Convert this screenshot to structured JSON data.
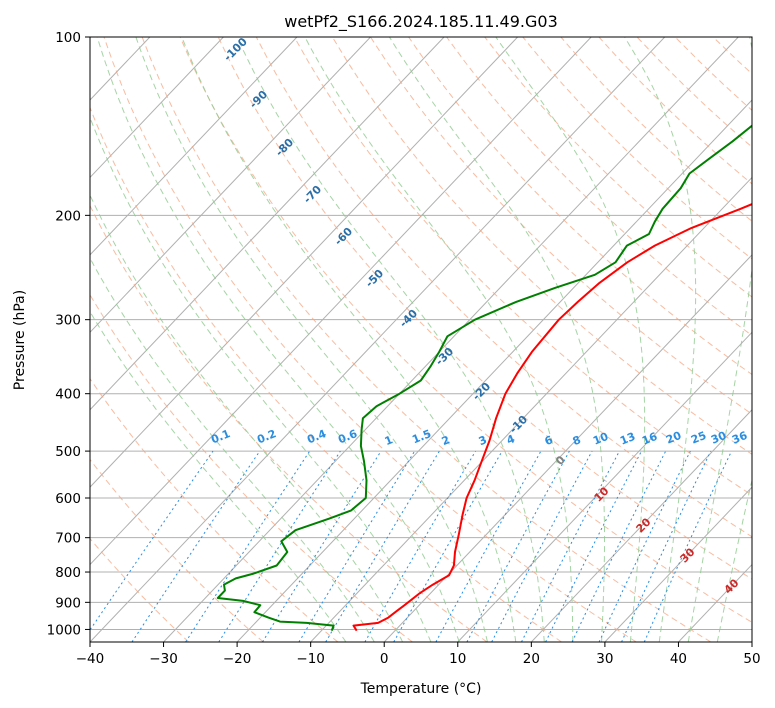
{
  "chart_data": {
    "type": "line",
    "title": "wetPf2_S166.2024.185.11.49.G03",
    "xlabel": "Temperature (°C)",
    "ylabel": "Pressure (hPa)",
    "xlim": [
      -40,
      50
    ],
    "ylim": [
      1050,
      100
    ],
    "y_scale": "log",
    "grid": true,
    "x_ticks": [
      -40,
      -30,
      -20,
      -10,
      0,
      10,
      20,
      30,
      40,
      50
    ],
    "x_tick_labels": [
      "−40",
      "−30",
      "−20",
      "−10",
      "0",
      "10",
      "20",
      "30",
      "40",
      "50"
    ],
    "y_ticks": [
      1000,
      900,
      800,
      700,
      600,
      500,
      400,
      300,
      200,
      100
    ],
    "y_tick_labels": [
      "1000",
      "900",
      "800",
      "700",
      "600",
      "500",
      "400",
      "300",
      "200",
      "100"
    ],
    "series": [
      {
        "color": "#ff0000",
        "points": [
          [
            -5.2,
            1005
          ],
          [
            -6.3,
            985
          ],
          [
            -3.3,
            975
          ],
          [
            -2.6,
            955
          ],
          [
            -2.3,
            930
          ],
          [
            -2.0,
            910
          ],
          [
            -1.5,
            870
          ],
          [
            -0.8,
            840
          ],
          [
            0.2,
            810
          ],
          [
            -0.4,
            780
          ],
          [
            -2.0,
            740
          ],
          [
            -3.8,
            690
          ],
          [
            -5.8,
            640
          ],
          [
            -7.4,
            600
          ],
          [
            -8.6,
            560
          ],
          [
            -10.1,
            520
          ],
          [
            -11.7,
            480
          ],
          [
            -13.7,
            440
          ],
          [
            -15.6,
            400
          ],
          [
            -16.6,
            370
          ],
          [
            -17.4,
            340
          ],
          [
            -17.9,
            300
          ],
          [
            -17.6,
            280
          ],
          [
            -17.1,
            260
          ],
          [
            -16.0,
            240
          ],
          [
            -14.4,
            225
          ],
          [
            -11.7,
            210
          ],
          [
            -7.5,
            195
          ],
          [
            -3.3,
            180
          ],
          [
            1.1,
            170
          ],
          [
            5.4,
            160
          ],
          [
            7.0,
            150
          ],
          [
            8.8,
            140
          ],
          [
            11.3,
            130
          ],
          [
            13.8,
            120
          ],
          [
            15.4,
            112
          ],
          [
            16.8,
            106
          ],
          [
            17.2,
            100
          ]
        ]
      },
      {
        "color": "#008000",
        "points": [
          [
            -8.6,
            1005
          ],
          [
            -9.0,
            985
          ],
          [
            -13.0,
            975
          ],
          [
            -16.8,
            970
          ],
          [
            -18.9,
            955
          ],
          [
            -21.5,
            935
          ],
          [
            -21.6,
            910
          ],
          [
            -24.5,
            895
          ],
          [
            -28.3,
            885
          ],
          [
            -28.3,
            860
          ],
          [
            -29.2,
            840
          ],
          [
            -28.4,
            820
          ],
          [
            -26.6,
            805
          ],
          [
            -24.5,
            780
          ],
          [
            -24.8,
            740
          ],
          [
            -27.0,
            710
          ],
          [
            -26.5,
            680
          ],
          [
            -23.4,
            650
          ],
          [
            -21.5,
            630
          ],
          [
            -21.1,
            600
          ],
          [
            -23.3,
            560
          ],
          [
            -26.1,
            520
          ],
          [
            -28.5,
            490
          ],
          [
            -30.5,
            460
          ],
          [
            -31.8,
            440
          ],
          [
            -31.5,
            420
          ],
          [
            -30.0,
            400
          ],
          [
            -28.8,
            380
          ],
          [
            -29.3,
            360
          ],
          [
            -30.0,
            340
          ],
          [
            -30.9,
            320
          ],
          [
            -29.3,
            300
          ],
          [
            -26.0,
            280
          ],
          [
            -22.5,
            265
          ],
          [
            -18.8,
            252
          ],
          [
            -17.6,
            240
          ],
          [
            -18.2,
            225
          ],
          [
            -16.7,
            215
          ],
          [
            -17.5,
            205
          ],
          [
            -18.1,
            195
          ],
          [
            -18.3,
            180
          ],
          [
            -19.0,
            170
          ],
          [
            -18.2,
            160
          ],
          [
            -17.3,
            150
          ],
          [
            -16.6,
            140
          ],
          [
            -15.7,
            130
          ],
          [
            -13.9,
            120
          ],
          [
            -11.4,
            110
          ],
          [
            -9.7,
            100
          ]
        ]
      }
    ],
    "dry_adiabat_labels": [
      "-100",
      "-90",
      "-80",
      "-70",
      "-60",
      "-50",
      "-40",
      "-30",
      "-20",
      "-10"
    ],
    "mixing_ratio_labels": [
      "0.1",
      "0.2",
      "0.4",
      "0.6",
      "1",
      "1.5",
      "2",
      "3",
      "4",
      "6",
      "8",
      "10",
      "13",
      "16",
      "20",
      "25",
      "30",
      "36"
    ],
    "moist_adiabat_labels": [
      "0",
      "10",
      "20",
      "30",
      "40"
    ],
    "colors": {
      "temperature": "#ff0000",
      "dewpoint": "#008000",
      "grid": "#b0b0b0",
      "dry_adiabats": "#f4a582",
      "moist_adiabats": "#8fc98f",
      "mixing_ratio": "#2a8ee0"
    }
  }
}
